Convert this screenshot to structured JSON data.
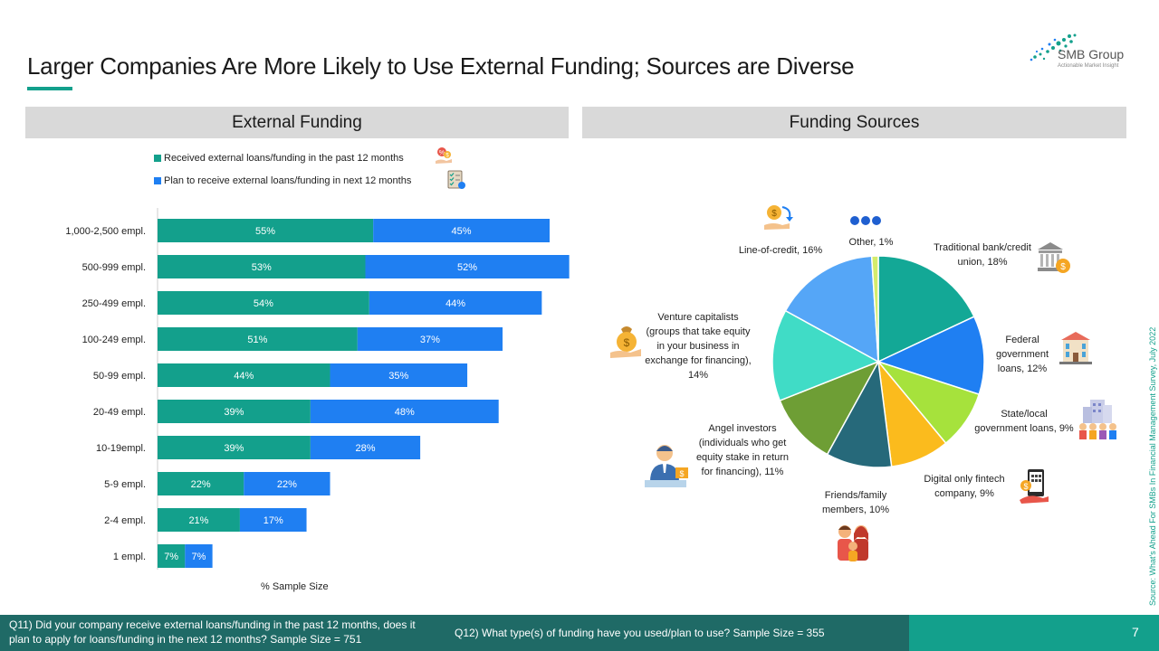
{
  "title": "Larger Companies Are More Likely to Use External Funding; Sources are Diverse",
  "logo": {
    "name": "SMB Group",
    "tagline": "Actionable Market Insight"
  },
  "left_panel": {
    "header": "External Funding"
  },
  "right_panel": {
    "header": "Funding Sources"
  },
  "colors": {
    "received": "#13a08c",
    "plan": "#1f7ff2",
    "accent": "#13a08c",
    "footer": "#1f6a66"
  },
  "icons": {
    "legend_received": "money-hand-icon",
    "legend_plan": "checklist-icon"
  },
  "chart_data": [
    {
      "type": "bar",
      "orientation": "horizontal",
      "stacked": true,
      "categories": [
        "1,000-2,500 empl.",
        "500-999 empl.",
        "250-499 empl.",
        "100-249 empl.",
        "50-99 empl.",
        "20-49 empl.",
        "10-19empl.",
        "5-9 empl.",
        "2-4 empl.",
        "1 empl."
      ],
      "series": [
        {
          "name": "Received external loans/funding in the past 12 months",
          "values": [
            55,
            53,
            54,
            51,
            44,
            39,
            39,
            22,
            21,
            7
          ],
          "labels": [
            "55%",
            "53%",
            "54%",
            "51%",
            "44%",
            "39%",
            "39%",
            "22%",
            "21%",
            "7%"
          ]
        },
        {
          "name": "Plan to receive external loans/funding in next 12 months",
          "values": [
            45,
            52,
            44,
            37,
            35,
            48,
            28,
            22,
            17,
            7
          ],
          "labels": [
            "45%",
            "52%",
            "44%",
            "37%",
            "35%",
            "48%",
            "28%",
            "22%",
            "17%",
            "7%"
          ]
        }
      ],
      "xlabel": "% Sample Size",
      "legend": "top-left"
    },
    {
      "type": "pie",
      "slices": [
        {
          "label": "Traditional bank/credit union, 18%",
          "value": 18,
          "color": "#13a896",
          "icon": "bank-icon"
        },
        {
          "label": "Federal government loans, 12%",
          "value": 12,
          "color": "#1f7ff2",
          "icon": "government-building-icon"
        },
        {
          "label": "State/local government loans, 9%",
          "value": 9,
          "color": "#a6e23c",
          "icon": "city-people-icon"
        },
        {
          "label": "Digital only fintech company, 9%",
          "value": 9,
          "color": "#fbbb1d",
          "icon": "phone-money-icon"
        },
        {
          "label": "Friends/family members, 10%",
          "value": 10,
          "color": "#26697a",
          "icon": "family-icon"
        },
        {
          "label": "Angel investors (individuals who get equity stake in return for financing), 11%",
          "value": 11,
          "color": "#6e9e35",
          "icon": "investor-icon"
        },
        {
          "label": "Venture capitalists (groups that take equity in your business in exchange for financing), 14%",
          "value": 14,
          "color": "#40dcc6",
          "icon": "money-bag-hand-icon"
        },
        {
          "label": "Line-of-credit, 16%",
          "value": 16,
          "color": "#55a6f7",
          "icon": "coin-hand-icon"
        },
        {
          "label": "Other, 1%",
          "value": 1,
          "color": "#d4ec6c",
          "icon": "more-dots-icon"
        }
      ]
    }
  ],
  "footer": {
    "q11": "Q11) Did your company receive external loans/funding in the past 12 months, does it plan to apply for loans/funding in the next 12 months? Sample Size = 751",
    "q12": "Q12) What type(s) of funding have you used/plan to use? Sample Size = 355",
    "page": "7"
  },
  "source": "Source: What's Ahead For SMBs In Financial Management Survey, July 2022"
}
